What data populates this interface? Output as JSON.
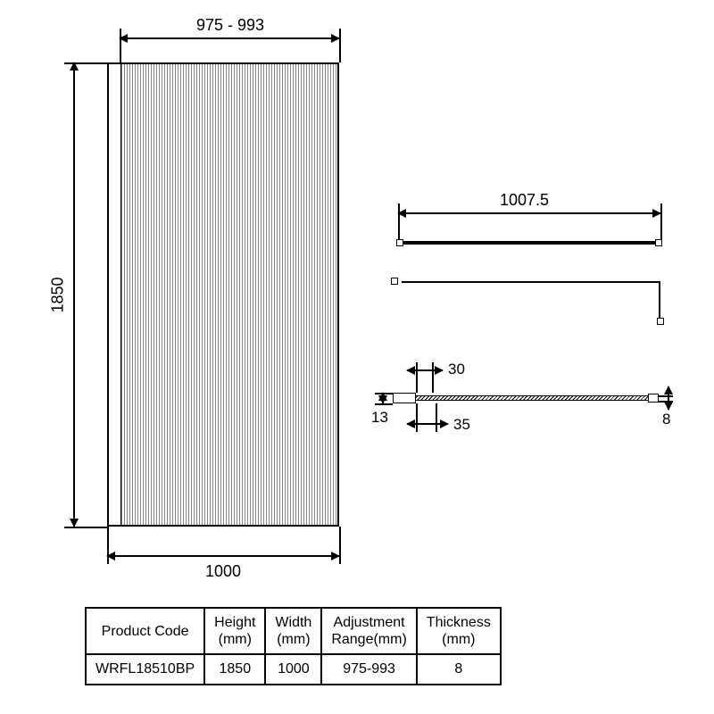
{
  "panel": {
    "top_dim": "975 - 993",
    "height_dim": "1850",
    "bottom_dim": "1000"
  },
  "bracket": {
    "length_dim": "1007.5"
  },
  "xsection": {
    "prof_depth": "13",
    "offset_top": "30",
    "offset_bot": "35",
    "glass_thk": "8"
  },
  "table": {
    "headers": [
      "Product Code",
      "Height\n(mm)",
      "Width\n(mm)",
      "Adjustment\nRange(mm)",
      "Thickness\n(mm)"
    ],
    "rows": [
      [
        "WRFL18510BP",
        "1850",
        "1000",
        "975-993",
        "8"
      ]
    ]
  },
  "colors": {
    "line": "#000000",
    "bg": "#ffffff"
  }
}
